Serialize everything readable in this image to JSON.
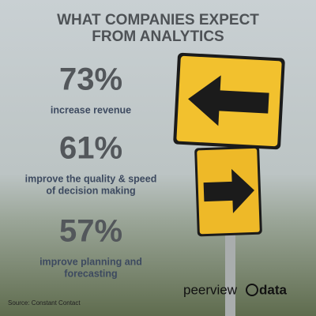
{
  "header": {
    "title_lines": [
      "WHAT COMPANIES EXPECT",
      "FROM ANALYTICS"
    ]
  },
  "stats": [
    {
      "figure": "73%",
      "text_lines": [
        "increase revenue"
      ]
    },
    {
      "figure": "61%",
      "text_lines": [
        "improve the quality & speed",
        "of decision making"
      ]
    },
    {
      "figure": "57%",
      "text_lines": [
        "improve planning and",
        "forecasting"
      ]
    }
  ],
  "footer": {
    "source": "Source: Constant Contact",
    "logo_left": "peerview",
    "logo_right": "data"
  }
}
